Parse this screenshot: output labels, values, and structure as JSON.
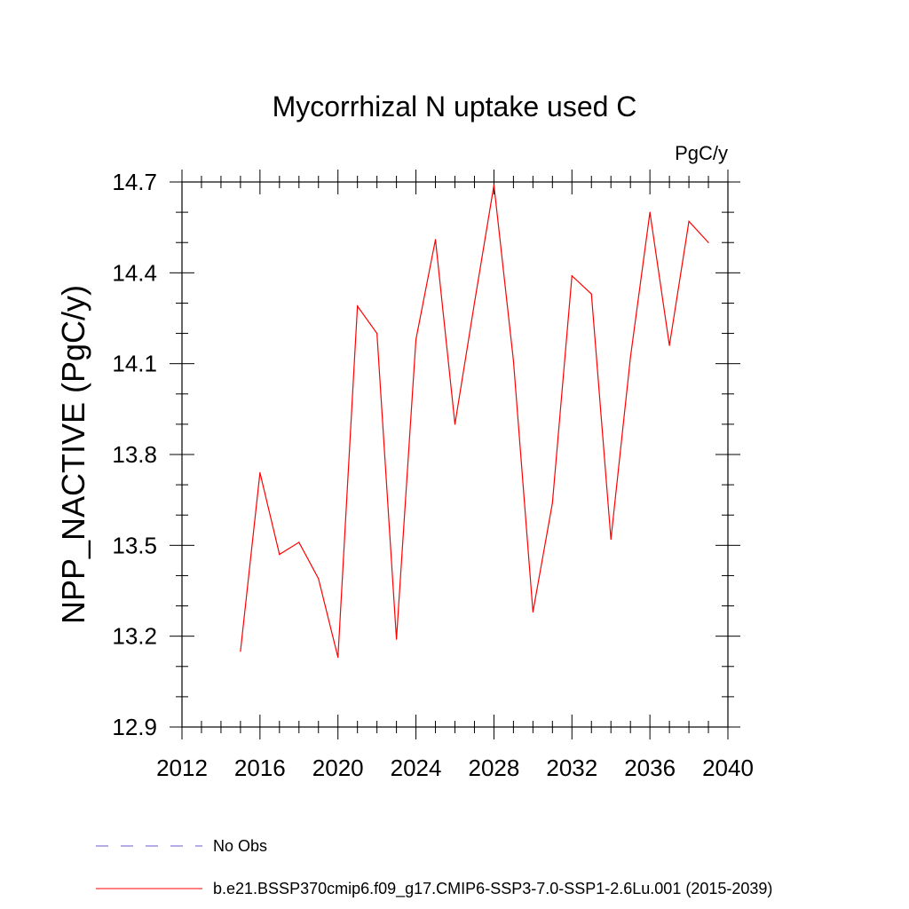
{
  "chart_data": {
    "type": "line",
    "title": "Mycorrhizal N uptake used C",
    "units_label": "PgC/y",
    "ylabel": "NPP_NACTIVE  (PgC/y)",
    "xlabel": "",
    "xlim": [
      2012,
      2040
    ],
    "ylim": [
      12.9,
      14.7
    ],
    "x_ticks": [
      2012,
      2016,
      2020,
      2024,
      2028,
      2032,
      2036,
      2040
    ],
    "y_ticks": [
      12.9,
      13.2,
      13.5,
      13.8,
      14.1,
      14.4,
      14.7
    ],
    "grid": false,
    "legend_position": "bottom",
    "series": [
      {
        "name": "b.e21.BSSP370cmip6.f09_g17.CMIP6-SSP3-7.0-SSP1-2.6Lu.001 (2015-2039)",
        "color": "#ff0000",
        "dash": "solid",
        "x": [
          2015,
          2016,
          2017,
          2018,
          2019,
          2020,
          2021,
          2022,
          2023,
          2024,
          2025,
          2026,
          2027,
          2028,
          2029,
          2030,
          2031,
          2032,
          2033,
          2034,
          2035,
          2036,
          2037,
          2038,
          2039
        ],
        "values": [
          13.15,
          13.74,
          13.47,
          13.51,
          13.39,
          13.13,
          14.29,
          14.2,
          13.19,
          14.18,
          14.51,
          13.9,
          14.3,
          14.69,
          14.11,
          13.28,
          13.64,
          14.39,
          14.33,
          13.52,
          14.12,
          14.6,
          14.16,
          14.57,
          14.5
        ]
      }
    ],
    "legend": [
      {
        "label": "No Obs",
        "color": "#6a5acd",
        "dash": "dashed"
      },
      {
        "label": "b.e21.BSSP370cmip6.f09_g17.CMIP6-SSP3-7.0-SSP1-2.6Lu.001 (2015-2039)",
        "color": "#ff0000",
        "dash": "solid"
      }
    ]
  }
}
